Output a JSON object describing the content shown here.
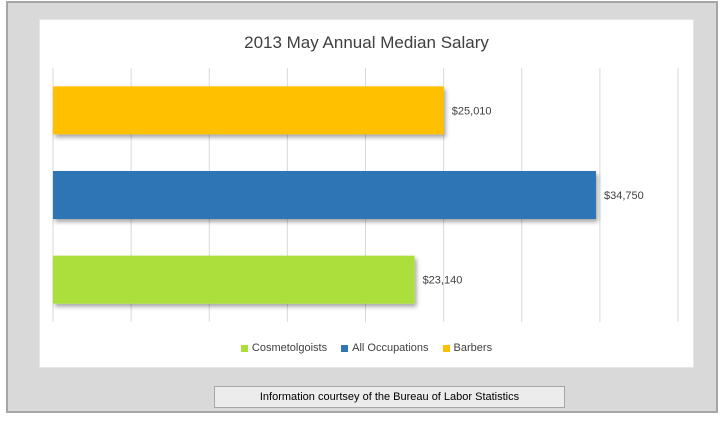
{
  "chart_data": {
    "type": "bar",
    "orientation": "horizontal",
    "title": "2013 May Annual Median Salary",
    "categories": [
      "Cosmetolgoists",
      "All Occupations",
      "Barbers"
    ],
    "values": [
      23140,
      34750,
      25010
    ],
    "data_labels": [
      "$23,140",
      "$34,750",
      "$25,010"
    ],
    "colors": [
      "#acdf3a",
      "#2e75b6",
      "#ffc000"
    ],
    "xlim": [
      0,
      40000
    ],
    "grid": true,
    "legend": "bottom",
    "legend_entries": [
      {
        "label": "Cosmetolgoists",
        "color": "#acdf3a"
      },
      {
        "label": "All Occupations",
        "color": "#2e75b6"
      },
      {
        "label": "Barbers",
        "color": "#ffc000"
      }
    ]
  },
  "caption": "Information courtsey of the Bureau of Labor Statistics"
}
